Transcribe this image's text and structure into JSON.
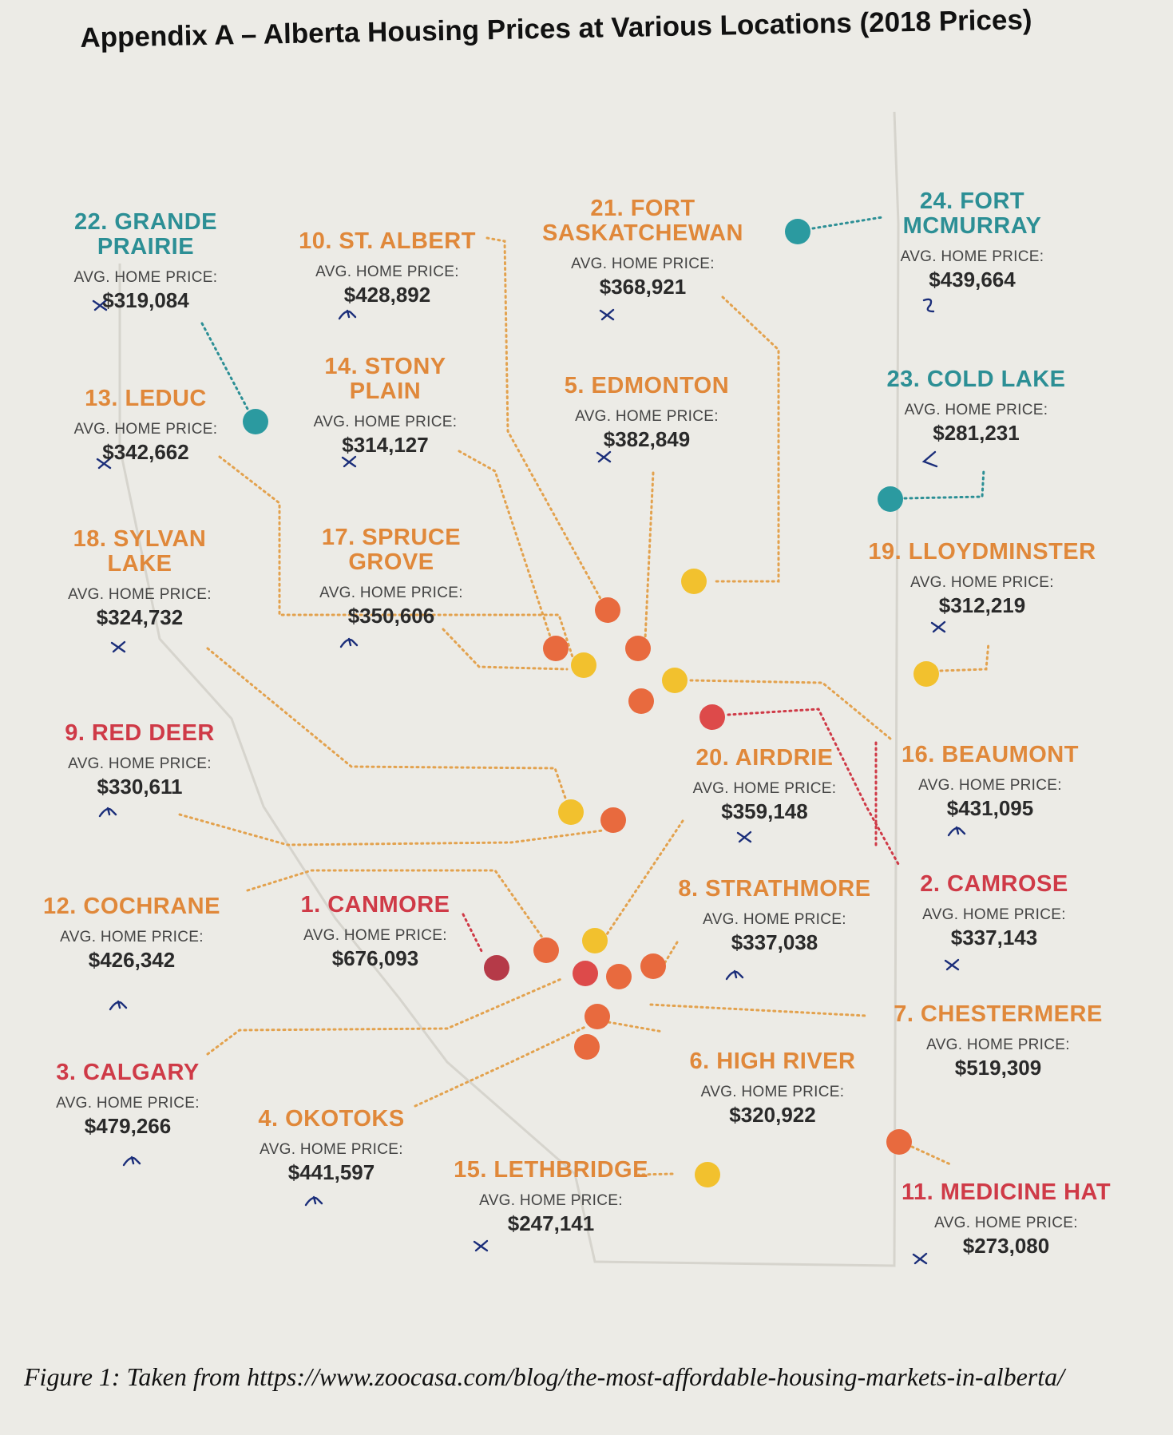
{
  "title": "Appendix A – Alberta Housing Prices at Various Locations (2018 Prices)",
  "caption": "Figure 1: Taken from https://www.zoocasa.com/blog/the-most-affordable-housing-markets-in-alberta/",
  "price_label": "AVG. HOME PRICE:",
  "colors": {
    "teal": "#2c8f95",
    "orange": "#e0883a",
    "red": "#cf3a47",
    "dot_red": "#dd4a4a",
    "dot_orange": "#e86a3e",
    "dot_yellow": "#f2c12e",
    "dot_dark": "#b53a48",
    "dot_teal": "#2b9aa0"
  },
  "locations": [
    {
      "rank": "1.",
      "name": "CANMORE",
      "price": "$676,093"
    },
    {
      "rank": "2.",
      "name": "CAMROSE",
      "price": "$337,143"
    },
    {
      "rank": "3.",
      "name": "CALGARY",
      "price": "$479,266"
    },
    {
      "rank": "4.",
      "name": "OKOTOKS",
      "price": "$441,597"
    },
    {
      "rank": "5.",
      "name": "EDMONTON",
      "price": "$382,849"
    },
    {
      "rank": "6.",
      "name": "HIGH RIVER",
      "price": "$320,922"
    },
    {
      "rank": "7.",
      "name": "CHESTERMERE",
      "price": "$519,309"
    },
    {
      "rank": "8.",
      "name": "STRATHMORE",
      "price": "$337,038"
    },
    {
      "rank": "9.",
      "name": "RED DEER",
      "price": "$330,611"
    },
    {
      "rank": "10.",
      "name": "ST. ALBERT",
      "price": "$428,892"
    },
    {
      "rank": "11.",
      "name": "MEDICINE HAT",
      "price": "$273,080"
    },
    {
      "rank": "12.",
      "name": "COCHRANE",
      "price": "$426,342"
    },
    {
      "rank": "13.",
      "name": "LEDUC",
      "price": "$342,662"
    },
    {
      "rank": "14.",
      "name": "STONY PLAIN",
      "price": "$314,127"
    },
    {
      "rank": "15.",
      "name": "LETHBRIDGE",
      "price": "$247,141"
    },
    {
      "rank": "16.",
      "name": "BEAUMONT",
      "price": "$431,095"
    },
    {
      "rank": "17.",
      "name": "SPRUCE GROVE",
      "price": "$350,606"
    },
    {
      "rank": "18.",
      "name": "SYLVAN LAKE",
      "price": "$324,732"
    },
    {
      "rank": "19.",
      "name": "LLOYDMINSTER",
      "price": "$312,219"
    },
    {
      "rank": "20.",
      "name": "AIRDRIE",
      "price": "$359,148"
    },
    {
      "rank": "21.",
      "name": "FORT SASKATCHEWAN",
      "price": "$368,921"
    },
    {
      "rank": "22.",
      "name": "GRANDE PRAIRIE",
      "price": "$319,084"
    },
    {
      "rank": "23.",
      "name": "COLD LAKE",
      "price": "$281,231"
    },
    {
      "rank": "24.",
      "name": "FORT MCMURRAY",
      "price": "$439,664"
    }
  ]
}
